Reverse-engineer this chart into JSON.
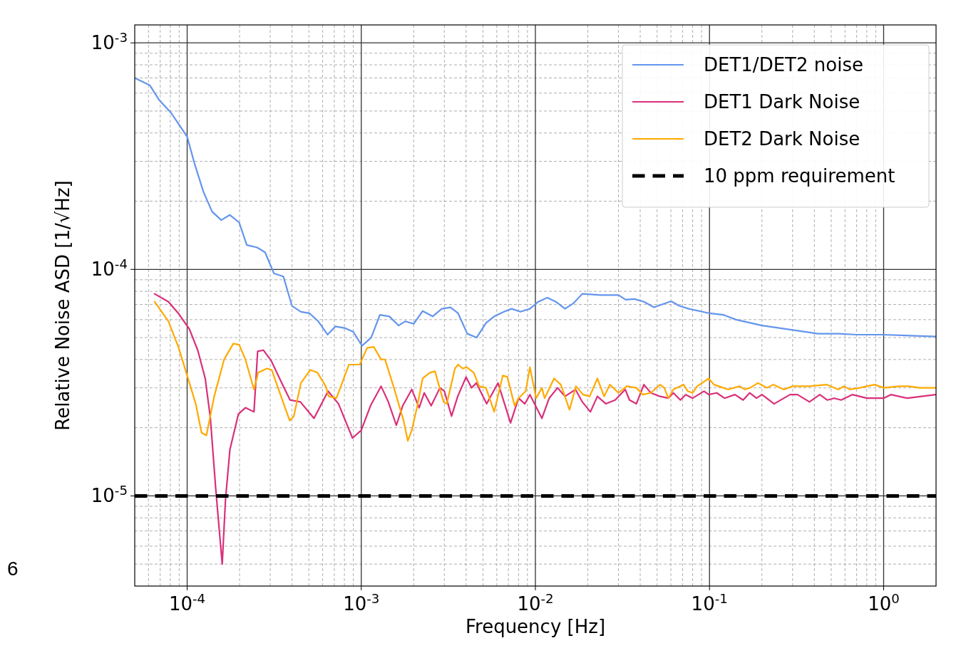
{
  "chart_data": {
    "type": "line",
    "xlabel": "Frequency [Hz]",
    "ylabel": "Relative Noise ASD [1/√Hz]",
    "log": "xy",
    "grid": true,
    "legend": "top right",
    "line_style": "solid",
    "marker": "none",
    "xlim": [
      5e-05,
      2
    ],
    "ylim": [
      4e-06,
      0.0012
    ],
    "xticks": [
      {
        "value": 0.0001,
        "label": "10$^{-4}$"
      },
      {
        "value": 0.001,
        "label": "10$^{-3}$"
      },
      {
        "value": 0.01,
        "label": "10$^{-2}$"
      },
      {
        "value": 0.1,
        "label": "10$^{-1}$"
      },
      {
        "value": 1,
        "label": "10$^{0}$"
      }
    ],
    "yticks": [
      {
        "value": 1e-05,
        "label": "10$^{-5}$"
      },
      {
        "value": 0.0001,
        "label": "10$^{-4}$"
      },
      {
        "value": 0.001,
        "label": "10$^{-3}$"
      }
    ],
    "ref_lines": [
      {
        "axis": "y",
        "value": 1e-05,
        "label": "10 ppm requirement",
        "color": "#000000",
        "line_style": "dashed"
      }
    ],
    "annotations": [
      "6"
    ],
    "series": [
      {
        "name": "DET1/DET2 noise",
        "color": "#6495ed",
        "x": [
          5e-05,
          6.1e-05,
          6.9e-05,
          8.1e-05,
          8.9e-05,
          0.0001,
          0.00011,
          0.000124,
          0.000139,
          0.000157,
          0.000176,
          0.000199,
          0.00022,
          0.000252,
          0.00028,
          0.000315,
          0.000357,
          0.0004,
          0.00045,
          0.000505,
          0.000566,
          0.00064,
          0.00071,
          0.00081,
          0.0009,
          0.00101,
          0.00114,
          0.00128,
          0.00145,
          0.00164,
          0.00179,
          0.002,
          0.00225,
          0.00257,
          0.0029,
          0.00325,
          0.0036,
          0.00406,
          0.0046,
          0.0052,
          0.0058,
          0.0066,
          0.0073,
          0.0082,
          0.0093,
          0.0104,
          0.0117,
          0.0131,
          0.0148,
          0.0166,
          0.0186,
          0.0237,
          0.03,
          0.033,
          0.037,
          0.042,
          0.048,
          0.059,
          0.061,
          0.067,
          0.076,
          0.1,
          0.12,
          0.142,
          0.2,
          0.3,
          0.42,
          0.55,
          0.7,
          0.98,
          2.0
        ],
        "values": [
          0.0007,
          0.00065,
          0.00056,
          0.00049,
          0.00044,
          0.000385,
          0.000295,
          0.00022,
          0.00018,
          0.000165,
          0.000174,
          0.000161,
          0.000128,
          0.000125,
          0.000119,
          9.6e-05,
          9.3e-05,
          6.9e-05,
          6.5e-05,
          6.4e-05,
          5.9e-05,
          5.15e-05,
          5.6e-05,
          5.5e-05,
          5.3e-05,
          4.6e-05,
          5e-05,
          6.3e-05,
          6.2e-05,
          5.65e-05,
          5.9e-05,
          5.75e-05,
          6.55e-05,
          6.2e-05,
          6.7e-05,
          6.8e-05,
          6.4e-05,
          5.2e-05,
          5e-05,
          5.8e-05,
          6.2e-05,
          6.5e-05,
          6.7e-05,
          6.5e-05,
          6.7e-05,
          7.2e-05,
          7.5e-05,
          7.2e-05,
          6.7e-05,
          7.1e-05,
          7.8e-05,
          7.7e-05,
          7.7e-05,
          7.35e-05,
          7.4e-05,
          7.2e-05,
          6.8e-05,
          7.2e-05,
          7.2e-05,
          6.9e-05,
          6.7e-05,
          6.4e-05,
          6.3e-05,
          6e-05,
          5.65e-05,
          5.4e-05,
          5.2e-05,
          5.2e-05,
          5.15e-05,
          5.15e-05,
          5.05e-05
        ]
      },
      {
        "name": "DET1 Dark Noise",
        "color": "#d9307a",
        "x": [
          6.5e-05,
          7.8e-05,
          8.9e-05,
          0.000103,
          0.000115,
          0.000127,
          0.000136,
          0.000146,
          0.000159,
          0.000166,
          0.000176,
          0.000197,
          0.000216,
          0.000242,
          0.000254,
          0.000274,
          0.000304,
          0.000346,
          0.00039,
          0.000447,
          0.000535,
          0.000645,
          0.00074,
          0.00089,
          0.001,
          0.00113,
          0.0013,
          0.00143,
          0.00159,
          0.00173,
          0.00195,
          0.00215,
          0.0023,
          0.00252,
          0.00283,
          0.003,
          0.0033,
          0.00358,
          0.004,
          0.0043,
          0.00458,
          0.00525,
          0.0061,
          0.0072,
          0.008,
          0.0087,
          0.0093,
          0.0109,
          0.012,
          0.0134,
          0.0148,
          0.017,
          0.0186,
          0.0207,
          0.0227,
          0.0254,
          0.0287,
          0.0328,
          0.0347,
          0.038,
          0.042,
          0.046,
          0.052,
          0.058,
          0.062,
          0.068,
          0.073,
          0.08,
          0.093,
          0.099,
          0.11,
          0.122,
          0.14,
          0.156,
          0.17,
          0.186,
          0.2,
          0.235,
          0.29,
          0.32,
          0.375,
          0.43,
          0.475,
          0.52,
          0.57,
          0.66,
          0.8,
          1.0,
          1.1,
          1.37,
          2.0
        ],
        "values": [
          7.8e-05,
          7.2e-05,
          6.4e-05,
          5.45e-05,
          4.4e-05,
          3.3e-05,
          2.2e-05,
          1.07e-05,
          5e-06,
          9.6e-06,
          1.6e-05,
          2.3e-05,
          2.45e-05,
          2.35e-05,
          4.35e-05,
          4.4e-05,
          3.95e-05,
          3.2e-05,
          2.65e-05,
          2.6e-05,
          2.2e-05,
          2.9e-05,
          2.55e-05,
          1.8e-05,
          1.95e-05,
          2.5e-05,
          3.05e-05,
          2.6e-05,
          2.05e-05,
          2.5e-05,
          2.95e-05,
          2.45e-05,
          2.85e-05,
          2.5e-05,
          3e-05,
          2.9e-05,
          2.25e-05,
          2.75e-05,
          3.35e-05,
          3e-05,
          3.15e-05,
          2.55e-05,
          3.15e-05,
          2.1e-05,
          2.7e-05,
          2.55e-05,
          2.8e-05,
          2.2e-05,
          2.7e-05,
          3e-05,
          2.75e-05,
          2.95e-05,
          2.6e-05,
          2.35e-05,
          2.75e-05,
          2.55e-05,
          2.65e-05,
          2.95e-05,
          2.65e-05,
          2.55e-05,
          3.1e-05,
          2.85e-05,
          2.75e-05,
          2.7e-05,
          2.85e-05,
          2.65e-05,
          2.8e-05,
          2.7e-05,
          2.9e-05,
          2.8e-05,
          2.85e-05,
          2.7e-05,
          2.8e-05,
          2.65e-05,
          2.85e-05,
          2.7e-05,
          2.8e-05,
          2.55e-05,
          2.8e-05,
          2.8e-05,
          2.6e-05,
          2.8e-05,
          2.65e-05,
          2.7e-05,
          2.65e-05,
          2.8e-05,
          2.7e-05,
          2.7e-05,
          2.8e-05,
          2.7e-05,
          2.8e-05
        ]
      },
      {
        "name": "DET2 Dark Noise",
        "color": "#ffaa00",
        "x": [
          6.5e-05,
          7.8e-05,
          8.9e-05,
          0.0001,
          0.000112,
          0.000121,
          0.000129,
          0.000143,
          0.000163,
          0.000184,
          0.000199,
          0.000216,
          0.000242,
          0.000256,
          0.000287,
          0.000306,
          0.000346,
          0.000388,
          0.00041,
          0.00045,
          0.00051,
          0.00056,
          0.000625,
          0.00065,
          0.00072,
          0.00085,
          0.00091,
          0.00098,
          0.00108,
          0.00118,
          0.0013,
          0.00137,
          0.00153,
          0.00175,
          0.00185,
          0.00195,
          0.0021,
          0.00225,
          0.00248,
          0.00265,
          0.00297,
          0.0031,
          0.00345,
          0.0036,
          0.00382,
          0.00403,
          0.00443,
          0.00475,
          0.0052,
          0.0057,
          0.0058,
          0.0065,
          0.0069,
          0.0076,
          0.008,
          0.0088,
          0.0093,
          0.0101,
          0.0109,
          0.0113,
          0.0128,
          0.014,
          0.0157,
          0.0171,
          0.0188,
          0.0205,
          0.0227,
          0.0248,
          0.0268,
          0.03,
          0.0335,
          0.038,
          0.0414,
          0.046,
          0.052,
          0.055,
          0.058,
          0.062,
          0.071,
          0.075,
          0.08,
          0.085,
          0.099,
          0.106,
          0.128,
          0.149,
          0.159,
          0.171,
          0.19,
          0.214,
          0.232,
          0.267,
          0.3,
          0.375,
          0.47,
          0.55,
          0.59,
          0.64,
          0.73,
          0.8,
          0.89,
          1.0,
          1.23,
          1.39,
          1.6,
          2.0
        ],
        "values": [
          7.2e-05,
          5.9e-05,
          4.55e-05,
          3.4e-05,
          2.55e-05,
          1.9e-05,
          1.85e-05,
          2.75e-05,
          4e-05,
          4.7e-05,
          4.65e-05,
          4e-05,
          2.95e-05,
          3.5e-05,
          3.65e-05,
          3.6e-05,
          2.75e-05,
          2.15e-05,
          2.25e-05,
          3.15e-05,
          3.6e-05,
          3.5e-05,
          3.05e-05,
          2.75e-05,
          2.7e-05,
          3.8e-05,
          3.8e-05,
          3.8e-05,
          4.5e-05,
          4.55e-05,
          4e-05,
          4e-05,
          3.05e-05,
          2.15e-05,
          1.75e-05,
          1.95e-05,
          2.5e-05,
          3.3e-05,
          3.5e-05,
          3.55e-05,
          2.6e-05,
          2.55e-05,
          3.65e-05,
          3.8e-05,
          3.65e-05,
          3.7e-05,
          3.5e-05,
          3.05e-05,
          3e-05,
          2.45e-05,
          2.35e-05,
          3.4e-05,
          3.35e-05,
          2.5e-05,
          2.7e-05,
          2.9e-05,
          3.7e-05,
          2.7e-05,
          3e-05,
          2.7e-05,
          3.3e-05,
          3.1e-05,
          2.4e-05,
          3.05e-05,
          2.8e-05,
          2.75e-05,
          3.3e-05,
          2.75e-05,
          3.1e-05,
          2.85e-05,
          3.05e-05,
          3e-05,
          2.8e-05,
          2.85e-05,
          3.1e-05,
          3e-05,
          2.7e-05,
          2.95e-05,
          3.1e-05,
          2.9e-05,
          2.85e-05,
          3.05e-05,
          3.3e-05,
          3.1e-05,
          2.95e-05,
          3.05e-05,
          2.95e-05,
          3e-05,
          3.15e-05,
          3e-05,
          3.1e-05,
          2.95e-05,
          3.05e-05,
          3.05e-05,
          3.1e-05,
          2.95e-05,
          3.05e-05,
          2.95e-05,
          3e-05,
          3.05e-05,
          3.1e-05,
          3e-05,
          3.05e-05,
          3.05e-05,
          3e-05,
          3e-05
        ]
      }
    ]
  }
}
